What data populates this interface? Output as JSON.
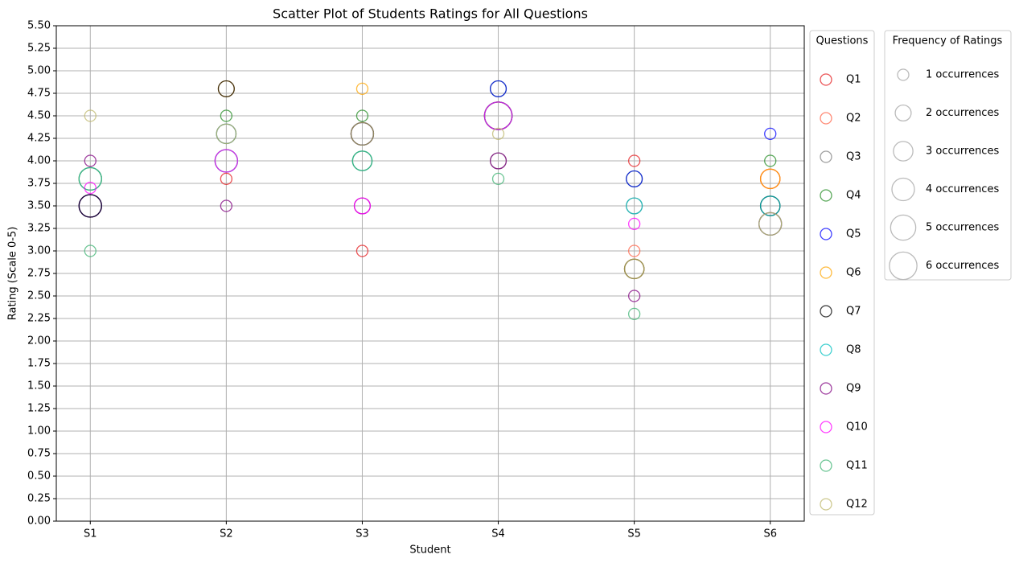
{
  "chart_data": {
    "type": "bubble",
    "title": "Scatter Plot of Students Ratings for All Questions",
    "x_label": "Student",
    "y_label": "Rating (Scale 0-5)",
    "categories": [
      "S1",
      "S2",
      "S3",
      "S4",
      "S5",
      "S6"
    ],
    "ylim": [
      0,
      5.5
    ],
    "yticks": [
      {
        "value": 0,
        "label": "0.00"
      },
      {
        "value": 0.25,
        "label": "0.25"
      },
      {
        "value": 0.5,
        "label": "0.50"
      },
      {
        "value": 0.75,
        "label": "0.75"
      },
      {
        "value": 1,
        "label": "1.00"
      },
      {
        "value": 1.25,
        "label": "1.25"
      },
      {
        "value": 1.5,
        "label": "1.50"
      },
      {
        "value": 1.75,
        "label": "1.75"
      },
      {
        "value": 2,
        "label": "2.00"
      },
      {
        "value": 2.25,
        "label": "2.25"
      },
      {
        "value": 2.5,
        "label": "2.50"
      },
      {
        "value": 2.75,
        "label": "2.75"
      },
      {
        "value": 3,
        "label": "3.00"
      },
      {
        "value": 3.25,
        "label": "3.25"
      },
      {
        "value": 3.5,
        "label": "3.50"
      },
      {
        "value": 3.75,
        "label": "3.75"
      },
      {
        "value": 4,
        "label": "4.00"
      },
      {
        "value": 4.25,
        "label": "4.25"
      },
      {
        "value": 4.5,
        "label": "4.50"
      },
      {
        "value": 4.75,
        "label": "4.75"
      },
      {
        "value": 5,
        "label": "5.00"
      },
      {
        "value": 5.25,
        "label": "5.25"
      },
      {
        "value": 5.5,
        "label": "5.50"
      }
    ],
    "grid": true,
    "legend_title": "Questions",
    "series": [
      {
        "name": "Q1",
        "color": "#e41a1c",
        "values": [
          3.5,
          3.8,
          3.0,
          4.5,
          4.0,
          3.8
        ],
        "sizes": [
          4,
          1,
          1,
          6,
          1,
          3
        ]
      },
      {
        "name": "Q2",
        "color": "#ff6347",
        "values": [
          3.5,
          4.0,
          4.3,
          4.5,
          3.0,
          3.8
        ],
        "sizes": [
          4,
          4,
          4,
          6,
          1,
          3
        ]
      },
      {
        "name": "Q3",
        "color": "#808080",
        "values": [
          3.8,
          4.0,
          4.0,
          4.0,
          3.5,
          3.5
        ],
        "sizes": [
          4,
          4,
          3,
          2,
          2,
          3
        ]
      },
      {
        "name": "Q4",
        "color": "#228b22",
        "values": [
          3.8,
          4.5,
          4.5,
          4.8,
          3.8,
          4.0
        ],
        "sizes": [
          4,
          1,
          1,
          2,
          2,
          1
        ]
      },
      {
        "name": "Q5",
        "color": "#0000ff",
        "values": [
          3.5,
          4.3,
          4.3,
          4.8,
          3.8,
          4.3
        ],
        "sizes": [
          4,
          3,
          4,
          2,
          2,
          1
        ]
      },
      {
        "name": "Q6",
        "color": "#ffa500",
        "values": [
          3.8,
          4.8,
          4.8,
          4.5,
          2.8,
          3.8
        ],
        "sizes": [
          4,
          2,
          1,
          6,
          3,
          3
        ]
      },
      {
        "name": "Q7",
        "color": "#000000",
        "values": [
          3.5,
          4.8,
          4.3,
          4.5,
          2.8,
          3.5
        ],
        "sizes": [
          4,
          2,
          4,
          6,
          3,
          3
        ]
      },
      {
        "name": "Q8",
        "color": "#00c0c0",
        "values": [
          3.8,
          4.0,
          4.0,
          4.5,
          3.5,
          3.5
        ],
        "sizes": [
          4,
          4,
          3,
          6,
          2,
          3
        ]
      },
      {
        "name": "Q9",
        "color": "#800080",
        "values": [
          4.0,
          3.5,
          3.5,
          4.0,
          2.5,
          3.3
        ],
        "sizes": [
          1,
          1,
          2,
          2,
          1,
          4
        ]
      },
      {
        "name": "Q10",
        "color": "#ff00ff",
        "values": [
          3.7,
          4.0,
          3.5,
          4.5,
          3.3,
          3.3
        ],
        "sizes": [
          1,
          4,
          2,
          6,
          1,
          4
        ]
      },
      {
        "name": "Q11",
        "color": "#3cb371",
        "values": [
          3.0,
          4.3,
          4.0,
          3.8,
          2.3,
          3.3
        ],
        "sizes": [
          1,
          3,
          3,
          1,
          1,
          4
        ]
      },
      {
        "name": "Q12",
        "color": "#bdb76b",
        "values": [
          4.5,
          4.3,
          4.3,
          4.3,
          2.8,
          3.3
        ],
        "sizes": [
          1,
          3,
          4,
          1,
          3,
          4
        ]
      }
    ],
    "size_legend": {
      "title": "Frequency of Ratings",
      "items": [
        {
          "value": 1,
          "label": "1 occurrences"
        },
        {
          "value": 2,
          "label": "2 occurrences"
        },
        {
          "value": 3,
          "label": "3 occurrences"
        },
        {
          "value": 4,
          "label": "4 occurrences"
        },
        {
          "value": 5,
          "label": "5 occurrences"
        },
        {
          "value": 6,
          "label": "6 occurrences"
        }
      ]
    }
  }
}
